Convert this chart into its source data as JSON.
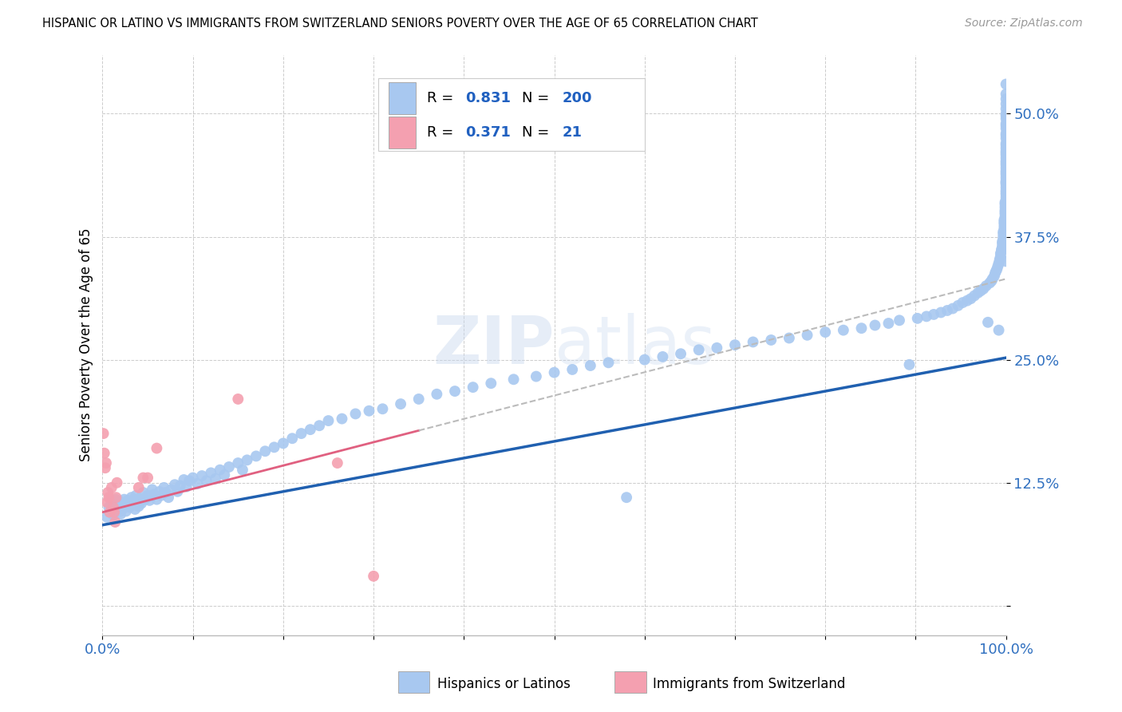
{
  "title": "HISPANIC OR LATINO VS IMMIGRANTS FROM SWITZERLAND SENIORS POVERTY OVER THE AGE OF 65 CORRELATION CHART",
  "source": "Source: ZipAtlas.com",
  "ylabel": "Seniors Poverty Over the Age of 65",
  "xlim": [
    0.0,
    1.0
  ],
  "ylim": [
    -0.03,
    0.56
  ],
  "xticklabels": [
    "0.0%",
    "",
    "",
    "",
    "",
    "",
    "",
    "",
    "",
    "",
    "100.0%"
  ],
  "ytick_positions": [
    0.0,
    0.125,
    0.25,
    0.375,
    0.5
  ],
  "ytick_labels": [
    "",
    "12.5%",
    "25.0%",
    "37.5%",
    "50.0%"
  ],
  "blue_color": "#a8c8f0",
  "pink_color": "#f4a0b0",
  "blue_line_color": "#2060b0",
  "pink_line_color": "#e06080",
  "watermark": "ZIPatlas",
  "blue_scatter_x": [
    0.005,
    0.007,
    0.008,
    0.01,
    0.01,
    0.012,
    0.013,
    0.015,
    0.015,
    0.016,
    0.018,
    0.018,
    0.019,
    0.02,
    0.02,
    0.021,
    0.022,
    0.023,
    0.024,
    0.025,
    0.026,
    0.027,
    0.028,
    0.03,
    0.031,
    0.032,
    0.033,
    0.035,
    0.036,
    0.037,
    0.038,
    0.04,
    0.041,
    0.043,
    0.045,
    0.047,
    0.05,
    0.052,
    0.055,
    0.057,
    0.06,
    0.063,
    0.065,
    0.068,
    0.07,
    0.073,
    0.076,
    0.08,
    0.083,
    0.086,
    0.09,
    0.093,
    0.096,
    0.1,
    0.105,
    0.11,
    0.115,
    0.12,
    0.125,
    0.13,
    0.135,
    0.14,
    0.15,
    0.155,
    0.16,
    0.17,
    0.18,
    0.19,
    0.2,
    0.21,
    0.22,
    0.23,
    0.24,
    0.25,
    0.265,
    0.28,
    0.295,
    0.31,
    0.33,
    0.35,
    0.37,
    0.39,
    0.41,
    0.43,
    0.455,
    0.48,
    0.5,
    0.52,
    0.54,
    0.56,
    0.58,
    0.6,
    0.62,
    0.64,
    0.66,
    0.68,
    0.7,
    0.72,
    0.74,
    0.76,
    0.78,
    0.8,
    0.82,
    0.84,
    0.855,
    0.87,
    0.882,
    0.893,
    0.902,
    0.912,
    0.92,
    0.928,
    0.935,
    0.941,
    0.947,
    0.952,
    0.957,
    0.961,
    0.965,
    0.969,
    0.972,
    0.975,
    0.978,
    0.98,
    0.982,
    0.984,
    0.985,
    0.987,
    0.988,
    0.989,
    0.99,
    0.991,
    0.992,
    0.992,
    0.993,
    0.993,
    0.994,
    0.994,
    0.995,
    0.995,
    0.996,
    0.996,
    0.996,
    0.997,
    0.997,
    0.997,
    0.997,
    0.998,
    0.998,
    0.998,
    0.998,
    0.998,
    0.999,
    0.999,
    0.999,
    0.999,
    0.999,
    0.999,
    0.999,
    1.0,
    1.0,
    1.0,
    1.0,
    1.0,
    1.0,
    1.0,
    1.0,
    1.0,
    1.0,
    1.0,
    1.0,
    1.0,
    1.0,
    1.0,
    1.0,
    1.0,
    1.0,
    1.0,
    1.0,
    1.0,
    1.0,
    1.0,
    1.0,
    1.0,
    1.0,
    1.0,
    1.0,
    1.0,
    1.0,
    1.0,
    1.0,
    1.0,
    1.0,
    1.0,
    1.0,
    1.0,
    1.0,
    1.0,
    1.0,
    1.0
  ],
  "blue_scatter_y": [
    0.09,
    0.1,
    0.095,
    0.105,
    0.098,
    0.092,
    0.103,
    0.097,
    0.108,
    0.101,
    0.095,
    0.099,
    0.106,
    0.093,
    0.102,
    0.097,
    0.104,
    0.099,
    0.108,
    0.102,
    0.096,
    0.101,
    0.107,
    0.1,
    0.105,
    0.11,
    0.103,
    0.108,
    0.098,
    0.112,
    0.106,
    0.101,
    0.109,
    0.104,
    0.115,
    0.108,
    0.112,
    0.107,
    0.118,
    0.113,
    0.108,
    0.116,
    0.112,
    0.12,
    0.115,
    0.11,
    0.118,
    0.123,
    0.116,
    0.122,
    0.128,
    0.121,
    0.127,
    0.13,
    0.124,
    0.132,
    0.127,
    0.135,
    0.129,
    0.138,
    0.133,
    0.141,
    0.145,
    0.138,
    0.148,
    0.152,
    0.157,
    0.161,
    0.165,
    0.17,
    0.175,
    0.179,
    0.183,
    0.188,
    0.19,
    0.195,
    0.198,
    0.2,
    0.205,
    0.21,
    0.215,
    0.218,
    0.222,
    0.226,
    0.23,
    0.233,
    0.237,
    0.24,
    0.244,
    0.247,
    0.11,
    0.25,
    0.253,
    0.256,
    0.26,
    0.262,
    0.265,
    0.268,
    0.27,
    0.272,
    0.275,
    0.278,
    0.28,
    0.282,
    0.285,
    0.287,
    0.29,
    0.245,
    0.292,
    0.294,
    0.296,
    0.298,
    0.3,
    0.302,
    0.305,
    0.308,
    0.31,
    0.312,
    0.315,
    0.318,
    0.32,
    0.322,
    0.325,
    0.288,
    0.328,
    0.33,
    0.332,
    0.335,
    0.338,
    0.34,
    0.342,
    0.345,
    0.28,
    0.348,
    0.35,
    0.352,
    0.355,
    0.358,
    0.36,
    0.362,
    0.365,
    0.368,
    0.37,
    0.372,
    0.375,
    0.378,
    0.38,
    0.382,
    0.385,
    0.388,
    0.39,
    0.392,
    0.395,
    0.398,
    0.4,
    0.402,
    0.405,
    0.408,
    0.41,
    0.412,
    0.415,
    0.418,
    0.42,
    0.422,
    0.425,
    0.35,
    0.428,
    0.43,
    0.432,
    0.435,
    0.438,
    0.44,
    0.442,
    0.445,
    0.448,
    0.45,
    0.452,
    0.455,
    0.458,
    0.46,
    0.462,
    0.465,
    0.468,
    0.47,
    0.43,
    0.475,
    0.478,
    0.48,
    0.485,
    0.488,
    0.49,
    0.37,
    0.495,
    0.498,
    0.5,
    0.505,
    0.51,
    0.515,
    0.52,
    0.53
  ],
  "pink_scatter_x": [
    0.001,
    0.002,
    0.003,
    0.004,
    0.005,
    0.006,
    0.007,
    0.008,
    0.01,
    0.012,
    0.013,
    0.014,
    0.015,
    0.016,
    0.04,
    0.045,
    0.05,
    0.06,
    0.15,
    0.26,
    0.3
  ],
  "pink_scatter_y": [
    0.175,
    0.155,
    0.14,
    0.145,
    0.105,
    0.115,
    0.11,
    0.095,
    0.12,
    0.1,
    0.095,
    0.085,
    0.11,
    0.125,
    0.12,
    0.13,
    0.13,
    0.16,
    0.21,
    0.145,
    0.03
  ],
  "blue_line_start_x": 0.0,
  "blue_line_start_y": 0.082,
  "blue_line_end_x": 1.0,
  "blue_line_end_y": 0.252,
  "pink_line_start_x": 0.0,
  "pink_line_start_y": 0.095,
  "pink_line_end_x": 0.35,
  "pink_line_end_y": 0.178
}
